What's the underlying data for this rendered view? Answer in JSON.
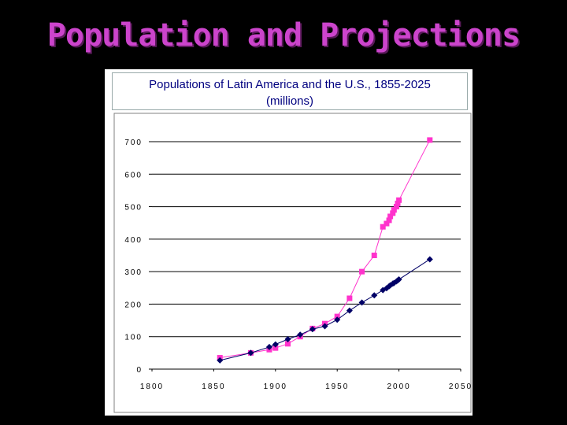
{
  "slide": {
    "title": "Population and Projections"
  },
  "chart_data": {
    "type": "line",
    "title": "Populations of Latin America and the U.S., 1855-2025",
    "subtitle": "(millions)",
    "xlabel": "",
    "ylabel": "",
    "xlim": [
      1800,
      2050
    ],
    "ylim": [
      0,
      700
    ],
    "x_ticks": [
      1800,
      1850,
      1900,
      1950,
      2000,
      2050
    ],
    "y_ticks": [
      0,
      100,
      200,
      300,
      400,
      500,
      600,
      700
    ],
    "grid": "horizontal",
    "legend": "none",
    "series": [
      {
        "color": "#ff33cc",
        "marker": "square",
        "points": [
          [
            1855,
            35
          ],
          [
            1880,
            50
          ],
          [
            1895,
            60
          ],
          [
            1900,
            65
          ],
          [
            1910,
            78
          ],
          [
            1920,
            100
          ],
          [
            1930,
            125
          ],
          [
            1940,
            140
          ],
          [
            1950,
            162
          ],
          [
            1960,
            218
          ],
          [
            1970,
            300
          ],
          [
            1980,
            350
          ],
          [
            1987,
            438
          ],
          [
            1990,
            448
          ],
          [
            1992,
            458
          ],
          [
            1993,
            470
          ],
          [
            1995,
            480
          ],
          [
            1996,
            490
          ],
          [
            1998,
            500
          ],
          [
            1999,
            510
          ],
          [
            2000,
            520
          ],
          [
            2025,
            705
          ]
        ]
      },
      {
        "color": "#000066",
        "marker": "diamond",
        "points": [
          [
            1855,
            27
          ],
          [
            1880,
            50
          ],
          [
            1895,
            68
          ],
          [
            1900,
            76
          ],
          [
            1910,
            92
          ],
          [
            1920,
            106
          ],
          [
            1930,
            123
          ],
          [
            1940,
            132
          ],
          [
            1950,
            152
          ],
          [
            1960,
            180
          ],
          [
            1970,
            205
          ],
          [
            1980,
            227
          ],
          [
            1987,
            243
          ],
          [
            1990,
            249
          ],
          [
            1992,
            255
          ],
          [
            1993,
            258
          ],
          [
            1995,
            263
          ],
          [
            1996,
            265
          ],
          [
            1998,
            270
          ],
          [
            1999,
            273
          ],
          [
            2000,
            276
          ],
          [
            2025,
            338
          ]
        ]
      }
    ]
  }
}
